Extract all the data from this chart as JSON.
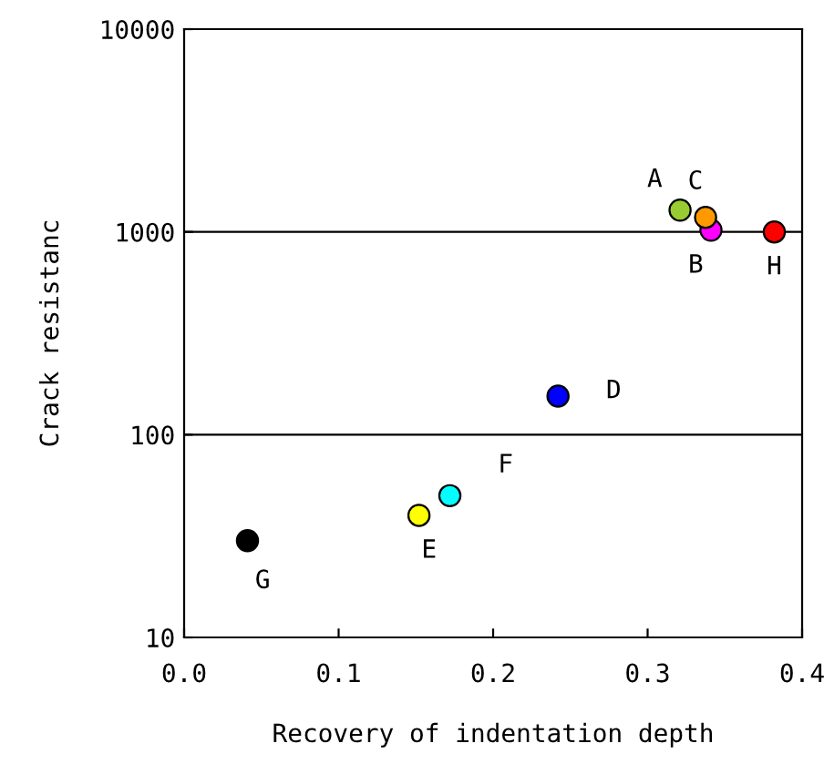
{
  "chart_data": {
    "type": "scatter",
    "xlabel": "Recovery of indentation depth",
    "ylabel": "Crack resistanc",
    "x": [
      0.321,
      0.341,
      0.3375,
      0.242,
      0.152,
      0.172,
      0.041,
      0.382
    ],
    "values": [
      1280,
      1020,
      1180,
      155,
      40,
      50,
      30,
      1000
    ],
    "colors": [
      "#99cc33",
      "#ff00ff",
      "#ff9900",
      "#0000ff",
      "#ffff00",
      "#00ffff",
      "#000000",
      "#ff0000"
    ],
    "marker": "circle",
    "log": "y",
    "grid": "y",
    "legend": false,
    "xlim": [
      0,
      0.4
    ],
    "xticks": [
      {
        "value": 0,
        "label": "0.0"
      },
      0.1,
      0.2,
      0.3,
      0.4
    ],
    "ylim": [
      10,
      10000
    ],
    "yticks": [
      10,
      100,
      1000,
      10000
    ],
    "annotations": [
      {
        "text": "A",
        "x": 0.321,
        "y": 1280
      },
      {
        "text": "B",
        "x": 0.341,
        "y": 1020
      },
      {
        "text": "C",
        "x": 0.3375,
        "y": 1180
      },
      {
        "text": "D",
        "x": 0.242,
        "y": 155
      },
      {
        "text": "E",
        "x": 0.152,
        "y": 40
      },
      {
        "text": "F",
        "x": 0.172,
        "y": 50
      },
      {
        "text": "G",
        "x": 0.041,
        "y": 30
      },
      {
        "text": "H",
        "x": 0.382,
        "y": 1000
      }
    ]
  }
}
